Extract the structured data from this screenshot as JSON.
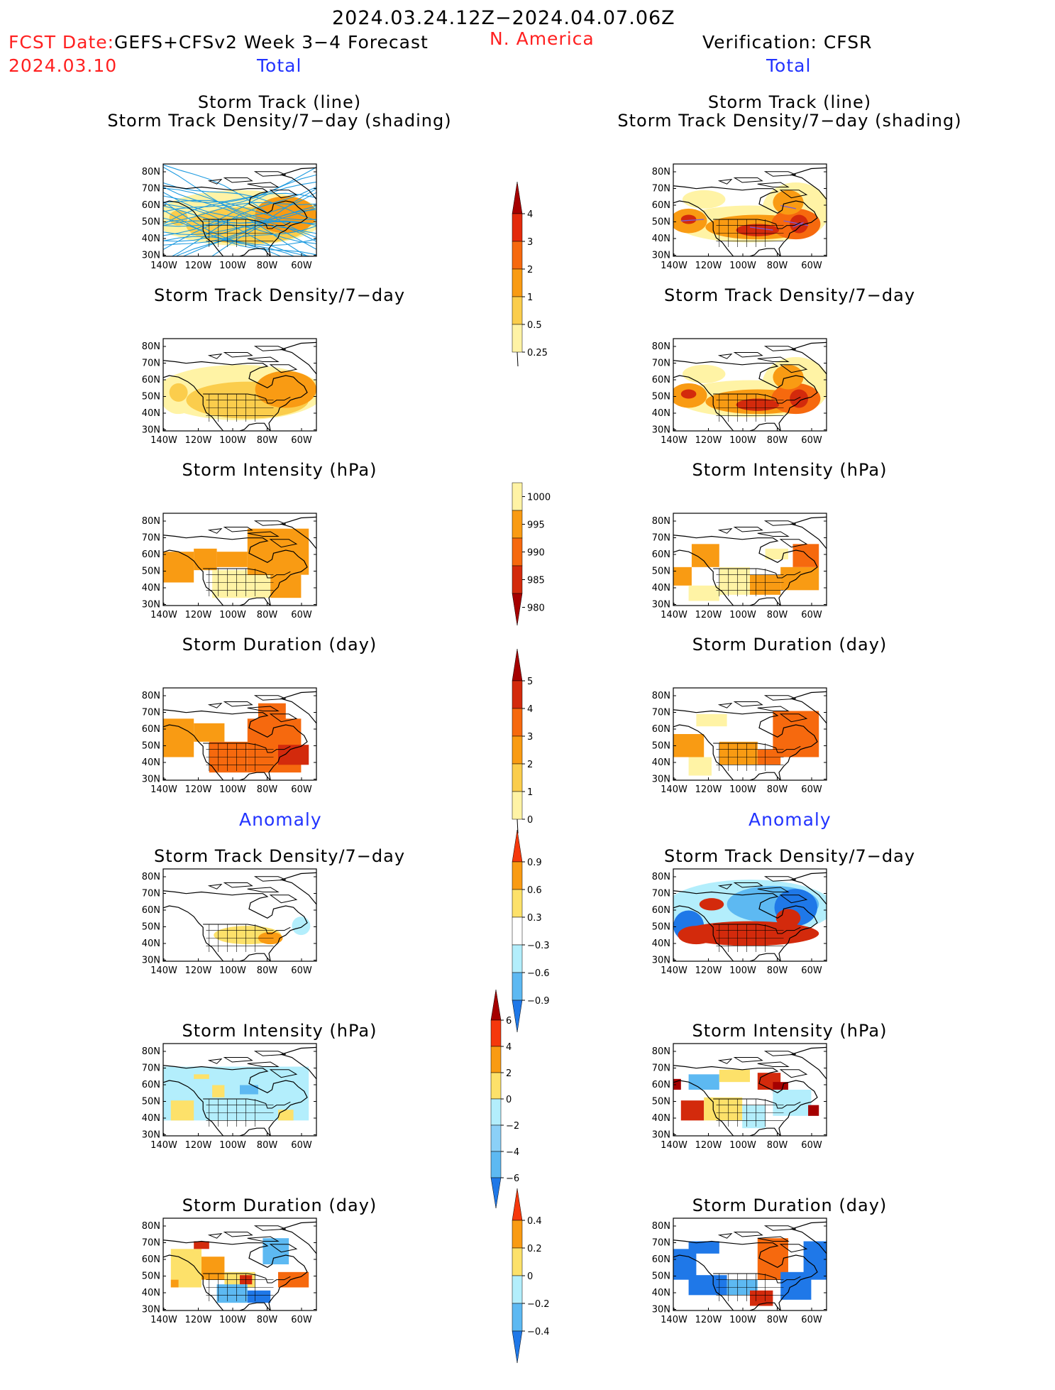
{
  "header": {
    "period": "2024.03.24.12Z−2024.04.07.06Z",
    "fcst_label": "FCST Date:",
    "fcst_product": "GEFS+CFSv2 Week 3−4 Forecast",
    "fcst_date": "2024.03.10",
    "region": "N. America",
    "verification": "Verification: CFSR"
  },
  "sections": {
    "total_left": "Total",
    "total_right": "Total",
    "anomaly_left": "Anomaly",
    "anomaly_right": "Anomaly"
  },
  "panels": {
    "track_line": "Storm Track (line)",
    "track_shading": "Storm Track Density/7−day (shading)",
    "density": "Storm Track Density/7−day",
    "intensity": "Storm Intensity (hPa)",
    "duration": "Storm Duration (day)"
  },
  "map_axes": {
    "lat_labels": [
      "80N",
      "70N",
      "60N",
      "50N",
      "40N",
      "30N"
    ],
    "lon_labels": [
      "140W",
      "120W",
      "100W",
      "80W",
      "60W"
    ]
  },
  "colorbars": {
    "density": {
      "labels": [
        "4",
        "3",
        "2",
        "1",
        "0.5",
        "0.25"
      ],
      "colors": [
        "#a50000",
        "#e32a0c",
        "#f6690e",
        "#f99b13",
        "#fbcd4c",
        "#fff3a5"
      ]
    },
    "intensity": {
      "labels": [
        "1000",
        "995",
        "990",
        "985",
        "980"
      ],
      "colors": [
        "#fff3a5",
        "#f99b13",
        "#f6690e",
        "#d32a0c",
        "#a50000"
      ]
    },
    "duration": {
      "labels": [
        "5",
        "4",
        "3",
        "2",
        "1",
        "0"
      ],
      "colors": [
        "#a50000",
        "#d32a0c",
        "#f6690e",
        "#f99b13",
        "#fbcd4c",
        "#fff3a5"
      ]
    },
    "density_anom": {
      "labels": [
        "0.9",
        "0.6",
        "0.3",
        "−0.3",
        "−0.6",
        "−0.9"
      ],
      "colors": [
        "#f5380c",
        "#f99b13",
        "#fde16a",
        "#ffffff",
        "#b3eefc",
        "#5db9f2",
        "#1f78e8"
      ]
    },
    "intensity_anom": {
      "labels": [
        "6",
        "4",
        "2",
        "0",
        "−2",
        "−4",
        "−6"
      ],
      "colors": [
        "#a50000",
        "#f5380c",
        "#f99b13",
        "#fde16a",
        "#b3eefc",
        "#8bd0f7",
        "#5db9f2",
        "#1f78e8"
      ]
    },
    "duration_anom": {
      "labels": [
        "0.4",
        "0.2",
        "0",
        "−0.2",
        "−0.4"
      ],
      "colors": [
        "#f5380c",
        "#f99b13",
        "#fde16a",
        "#b3eefc",
        "#5db9f2",
        "#1f78e8"
      ]
    }
  },
  "colors": {
    "red_text": "#ff2020",
    "blue_text": "#2233ff",
    "track_line": "#1e9be0",
    "orange": "#f99b13",
    "yellow": "#fde16a",
    "light_blue": "#b3eefc",
    "blue": "#1f78e8"
  }
}
